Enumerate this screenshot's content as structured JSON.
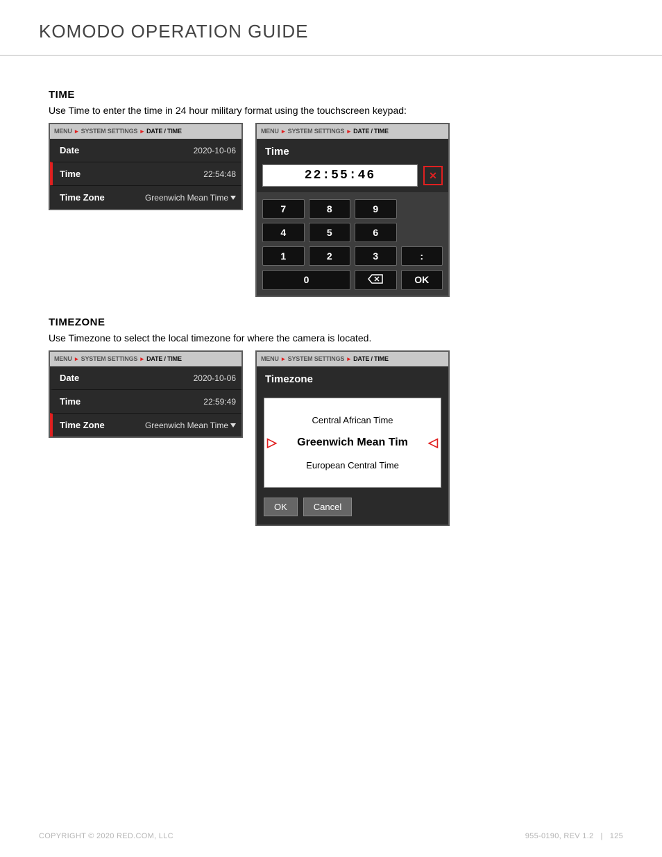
{
  "header": {
    "title": "KOMODO OPERATION GUIDE"
  },
  "colors": {
    "accent": "#e02020",
    "panel_bg": "#2a2a2a",
    "panel_border": "#5c5c5c",
    "breadcrumb_bg": "#c8c8c8",
    "key_bg": "#111111",
    "keypad_bg": "#3d3d3d"
  },
  "breadcrumb": {
    "seg1": "MENU",
    "seg2": "SYSTEM SETTINGS",
    "seg3": "DATE / TIME"
  },
  "time_section": {
    "heading": "TIME",
    "desc": "Use Time to enter the time in 24 hour military format using the touchscreen keypad:",
    "left_panel": {
      "rows": [
        {
          "label": "Date",
          "value": "2020-10-06",
          "selected": false,
          "caret": false
        },
        {
          "label": "Time",
          "value": "22:54:48",
          "selected": true,
          "caret": false
        },
        {
          "label": "Time Zone",
          "value": "Greenwich Mean Time",
          "selected": false,
          "caret": true
        }
      ]
    },
    "right_panel": {
      "title": "Time",
      "display": "22:55:46",
      "close": "✕",
      "keys": {
        "k7": "7",
        "k8": "8",
        "k9": "9",
        "k4": "4",
        "k5": "5",
        "k6": "6",
        "k1": "1",
        "k2": "2",
        "k3": "3",
        "colon": ":",
        "k0": "0",
        "bsp": "⌫",
        "ok": "OK"
      }
    }
  },
  "tz_section": {
    "heading": "TIMEZONE",
    "desc": "Use Timezone to select the local timezone for where the camera is located.",
    "left_panel": {
      "rows": [
        {
          "label": "Date",
          "value": "2020-10-06",
          "selected": false,
          "caret": false
        },
        {
          "label": "Time",
          "value": "22:59:49",
          "selected": false,
          "caret": false
        },
        {
          "label": "Time Zone",
          "value": "Greenwich Mean Time",
          "selected": true,
          "caret": true
        }
      ]
    },
    "right_panel": {
      "title": "Timezone",
      "options": {
        "prev": "Central African Time",
        "sel": "Greenwich Mean Tim",
        "next": "European Central Time"
      },
      "arrow_l": "▷",
      "arrow_r": "◁",
      "ok": "OK",
      "cancel": "Cancel"
    }
  },
  "footer": {
    "left": "COPYRIGHT © 2020 RED.COM, LLC",
    "right_doc": "955-0190, REV 1.2",
    "right_sep": "|",
    "right_page": "125"
  }
}
